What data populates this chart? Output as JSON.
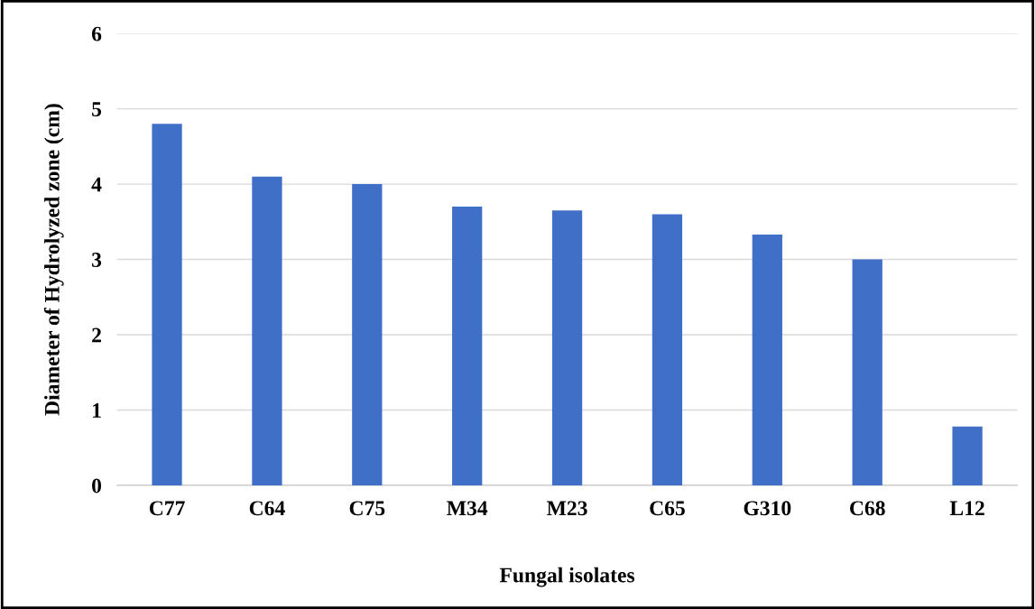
{
  "chart_data": {
    "type": "bar",
    "xlabel": "Fungal isolates",
    "ylabel": "Diameter of Hydrolyzed zone (cm)",
    "categories": [
      "C77",
      "C64",
      "C75",
      "M34",
      "M23",
      "C65",
      "G310",
      "C68",
      "L12"
    ],
    "values": [
      4.8,
      4.1,
      4.0,
      3.7,
      3.65,
      3.6,
      3.33,
      3.0,
      0.78
    ],
    "color": "#3f6fc6",
    "ylim": [
      0,
      6
    ],
    "yticks": [
      0,
      1,
      2,
      3,
      4,
      5,
      6
    ],
    "grid": "y"
  }
}
